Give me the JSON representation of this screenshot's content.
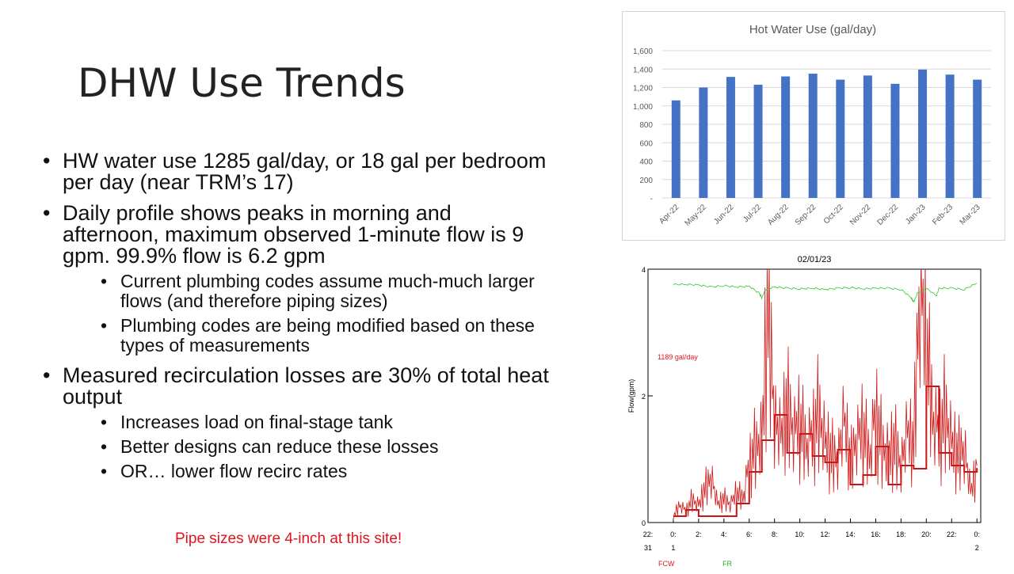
{
  "slide": {
    "title": "DHW Use Trends",
    "bullets": [
      {
        "text": "HW water use 1285 gal/day, or 18 gal per bedroom per day (near TRM’s 17)",
        "subs": []
      },
      {
        "text": "Daily profile shows peaks in morning and afternoon, maximum observed 1-minute flow is 9 gpm.  99.9% flow is 6.2 gpm",
        "subs": [
          "Current plumbing codes assume much-much larger flows (and therefore piping sizes)",
          "Plumbing codes are being modified based on these types of measurements"
        ]
      },
      {
        "text": "Measured recirculation losses are 30% of total heat output",
        "subs": [
          "Increases load on final-stage tank",
          "Better designs can reduce these losses",
          "OR… lower flow recirc rates"
        ]
      }
    ],
    "note": "Pipe sizes were 4-inch at this site!",
    "note_color": "#e0141e"
  },
  "chart_data": [
    {
      "type": "bar",
      "title": "Hot Water Use (gal/day)",
      "categories": [
        "Apr-22",
        "May-22",
        "Jun-22",
        "Jul-22",
        "Aug-22",
        "Sep-22",
        "Oct-22",
        "Nov-22",
        "Dec-22",
        "Jan-23",
        "Feb-23",
        "Mar-23"
      ],
      "values": [
        1060,
        1200,
        1315,
        1230,
        1320,
        1350,
        1285,
        1330,
        1240,
        1395,
        1340,
        1285
      ],
      "ylim": [
        0,
        1600
      ],
      "yticks": [
        0,
        200,
        400,
        600,
        800,
        1000,
        1200,
        1400,
        1600
      ],
      "ytick_labels": [
        "-",
        "200",
        "400",
        "600",
        "800",
        "1,000",
        "1,200",
        "1,400",
        "1,600"
      ],
      "bar_color": "#4472c4",
      "grid": true
    },
    {
      "type": "line",
      "title": "02/01/23",
      "ylabel": "Flow(gpm)",
      "ylim": [
        0,
        4
      ],
      "yticks": [
        0,
        2,
        4
      ],
      "xlim": [
        -2,
        24.3
      ],
      "xtick_values": [
        -2,
        0,
        2,
        4,
        6,
        8,
        10,
        12,
        14,
        16,
        18,
        20,
        22,
        24
      ],
      "xtick_labels": [
        "22:",
        "0:",
        "2:",
        "4:",
        "6:",
        "8:",
        "10:",
        "12:",
        "14:",
        "16:",
        "18:",
        "20:",
        "22:",
        "0:"
      ],
      "xtick_sublabels": [
        "31",
        "1",
        "",
        "",
        "",
        "",
        "",
        "",
        "",
        "",
        "",
        "",
        "",
        "2"
      ],
      "annotation": "1189 gal/day",
      "annotation_color": "#e0141e",
      "legend": [
        {
          "name": "FCW",
          "color": "#e0141e"
        },
        {
          "name": "FR",
          "color": "#22b422"
        }
      ],
      "series": [
        {
          "color": "#c81414",
          "style": "step-thick",
          "x": [
            0.0,
            0.5,
            1.0,
            1.5,
            2.0,
            2.5,
            3.0,
            3.5,
            4.0,
            4.5,
            5.0,
            5.5,
            6.0,
            6.5,
            7.0,
            7.5,
            8.0,
            8.5,
            9.0,
            9.5,
            10.0,
            10.5,
            11.0,
            11.5,
            12.0,
            12.5,
            13.0,
            13.5,
            14.0,
            14.5,
            15.0,
            15.5,
            16.0,
            16.5,
            17.0,
            17.5,
            18.0,
            18.5,
            19.0,
            19.5,
            20.0,
            20.5,
            21.0,
            21.5,
            22.0,
            22.5,
            23.0,
            23.5,
            24.0
          ],
          "values": [
            0.1,
            0.1,
            0.2,
            0.2,
            0.1,
            0.1,
            0.1,
            0.1,
            0.1,
            0.1,
            0.3,
            0.3,
            0.8,
            0.8,
            1.3,
            1.3,
            1.7,
            1.7,
            1.1,
            1.1,
            1.4,
            1.4,
            1.05,
            1.05,
            0.95,
            0.95,
            1.15,
            1.15,
            0.6,
            0.6,
            0.75,
            0.75,
            1.2,
            1.2,
            0.6,
            0.6,
            0.9,
            0.9,
            0.85,
            0.85,
            2.15,
            2.15,
            1.1,
            1.1,
            0.9,
            0.9,
            0.8,
            0.8,
            0.85
          ]
        },
        {
          "color": "#d01818",
          "style": "noisy",
          "x": [
            0.0,
            0.5,
            1.0,
            1.5,
            2.0,
            2.5,
            3.0,
            3.5,
            4.0,
            4.5,
            5.0,
            5.5,
            6.0,
            6.5,
            7.0,
            7.5,
            8.0,
            8.5,
            9.0,
            9.5,
            10.0,
            10.5,
            11.0,
            11.5,
            12.0,
            12.5,
            13.0,
            13.5,
            14.0,
            14.5,
            15.0,
            15.5,
            16.0,
            16.5,
            17.0,
            17.5,
            18.0,
            18.5,
            19.0,
            19.5,
            20.0,
            20.5,
            21.0,
            21.5,
            22.0,
            22.5,
            23.0,
            23.5,
            24.0
          ],
          "values": [
            0.1,
            0.3,
            0.2,
            0.4,
            0.3,
            0.6,
            0.8,
            0.3,
            0.4,
            0.3,
            0.5,
            0.4,
            1.0,
            1.3,
            1.5,
            4.0,
            1.8,
            1.4,
            2.0,
            1.5,
            1.7,
            1.3,
            1.5,
            1.9,
            1.4,
            1.2,
            1.1,
            1.7,
            1.0,
            1.4,
            1.6,
            1.1,
            1.9,
            1.3,
            1.2,
            1.4,
            1.0,
            1.5,
            1.3,
            4.0,
            3.0,
            1.8,
            1.5,
            1.9,
            1.4,
            1.2,
            1.3,
            0.5,
            0.9
          ]
        },
        {
          "color": "#2cc82c",
          "style": "thin",
          "x": [
            0.0,
            1.0,
            2.0,
            3.0,
            4.0,
            5.0,
            6.0,
            6.8,
            7.0,
            7.3,
            8.0,
            9.0,
            10.0,
            11.0,
            12.0,
            13.0,
            14.0,
            15.0,
            16.0,
            17.0,
            18.0,
            18.8,
            19.0,
            19.3,
            20.0,
            20.8,
            21.0,
            22.0,
            23.0,
            24.0
          ],
          "values": [
            3.76,
            3.76,
            3.75,
            3.72,
            3.74,
            3.72,
            3.73,
            3.62,
            3.55,
            3.68,
            3.72,
            3.7,
            3.69,
            3.7,
            3.68,
            3.7,
            3.71,
            3.69,
            3.7,
            3.7,
            3.68,
            3.55,
            3.48,
            3.62,
            3.7,
            3.58,
            3.7,
            3.7,
            3.68,
            3.78
          ]
        }
      ]
    }
  ]
}
